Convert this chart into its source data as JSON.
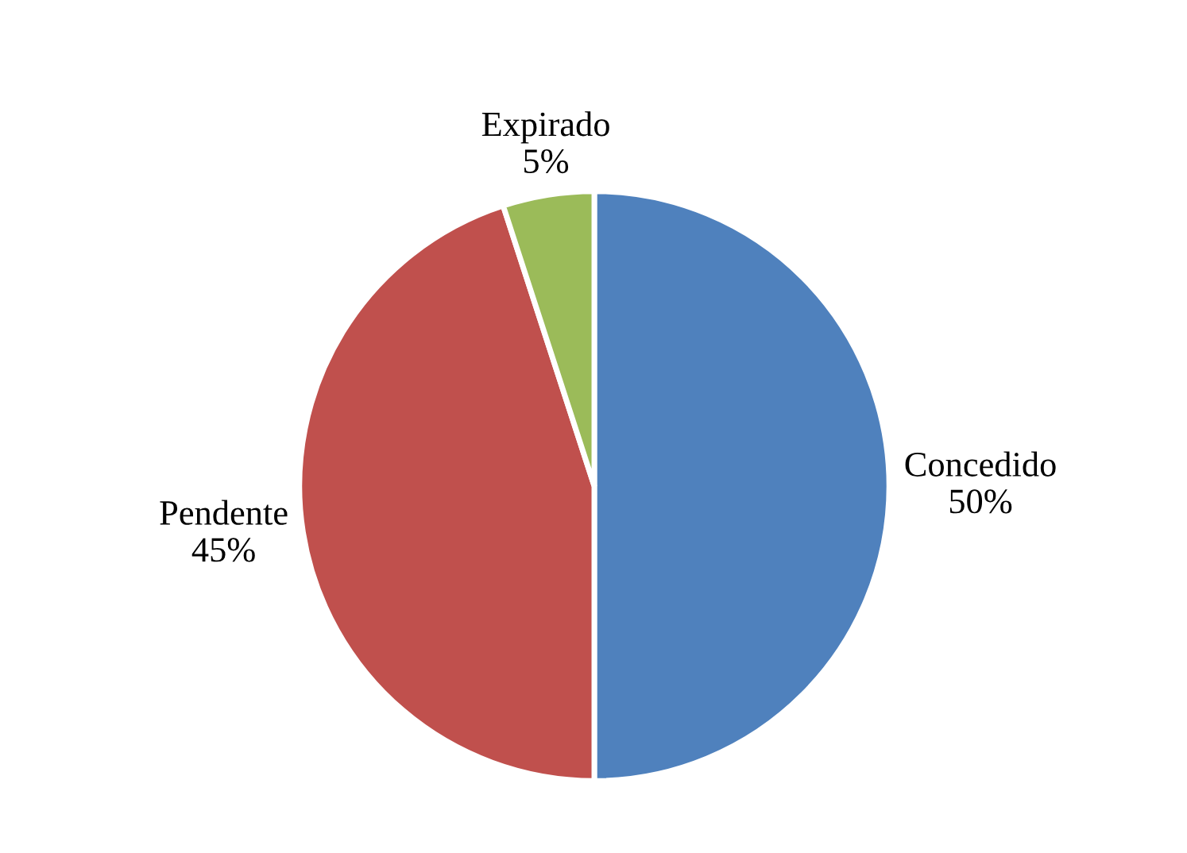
{
  "chart_data": {
    "type": "pie",
    "categories": [
      "Concedido",
      "Pendente",
      "Expirado"
    ],
    "values": [
      50,
      45,
      5
    ],
    "value_labels": [
      "50%",
      "45%",
      "5%"
    ],
    "colors": [
      "#4f81bd",
      "#c0504d",
      "#9bbb59"
    ],
    "legend": false
  }
}
